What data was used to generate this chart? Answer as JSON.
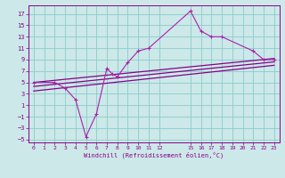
{
  "bg_color": "#cce8e8",
  "grid_color": "#88cccc",
  "line_color": "#880088",
  "line_color2": "#aa22aa",
  "xlim": [
    -0.5,
    23.5
  ],
  "ylim": [
    -5.5,
    18.5
  ],
  "xticks": [
    0,
    1,
    2,
    3,
    4,
    5,
    6,
    7,
    8,
    9,
    10,
    11,
    12,
    15,
    16,
    17,
    18,
    19,
    20,
    21,
    22,
    23
  ],
  "yticks": [
    -5,
    -3,
    -1,
    1,
    3,
    5,
    7,
    9,
    11,
    13,
    15,
    17
  ],
  "xlabel": "Windchill (Refroidissement éolien,°C)",
  "scatter_x": [
    0,
    2,
    3,
    4,
    5,
    6,
    7,
    7.5,
    8,
    9,
    10,
    11,
    15,
    16,
    17,
    18,
    21,
    22,
    23
  ],
  "scatter_y": [
    5,
    5,
    4,
    2,
    -4.5,
    -0.5,
    7.5,
    6.5,
    6.0,
    8.5,
    10.5,
    11,
    17.5,
    14,
    13,
    13,
    10.5,
    9,
    9
  ],
  "line1_x": [
    0,
    23
  ],
  "line1_y": [
    5.0,
    9.2
  ],
  "line2_x": [
    0,
    23
  ],
  "line2_y": [
    4.3,
    8.6
  ],
  "line3_x": [
    0,
    23
  ],
  "line3_y": [
    3.5,
    8.0
  ]
}
